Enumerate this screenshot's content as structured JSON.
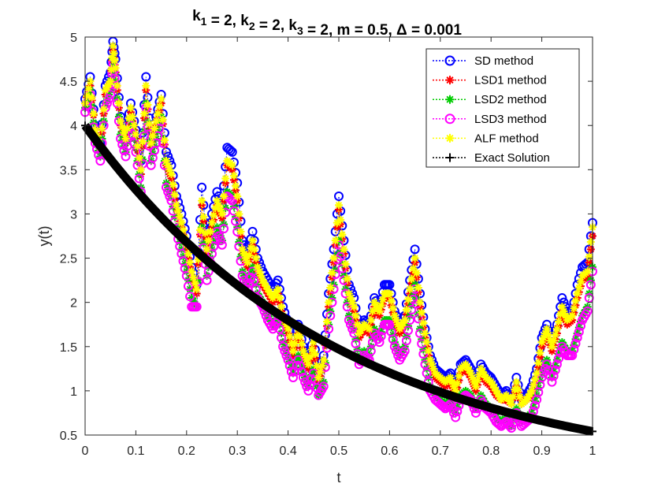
{
  "chart_data": {
    "type": "line",
    "title": {
      "parts": [
        {
          "text": "k",
          "sub": "1"
        },
        {
          "text": " = 2, k",
          "sub": "2"
        },
        {
          "text": " = 2, k",
          "sub": "3"
        },
        {
          "text": " = 2, m = 0.5, Δ = 0.001",
          "sub": ""
        }
      ]
    },
    "xlabel": "t",
    "ylabel": "y(t)",
    "xlim": [
      0,
      1
    ],
    "ylim": [
      0.5,
      5
    ],
    "xticks": [
      0,
      0.1,
      0.2,
      0.3,
      0.4,
      0.5,
      0.6,
      0.7,
      0.8,
      0.9,
      1
    ],
    "xtick_labels": [
      "0",
      "0.1",
      "0.2",
      "0.3",
      "0.4",
      "0.5",
      "0.6",
      "0.7",
      "0.8",
      "0.9",
      "1"
    ],
    "yticks": [
      0.5,
      1,
      1.5,
      2,
      2.5,
      3,
      3.5,
      4,
      4.5,
      5
    ],
    "ytick_labels": [
      "0.5",
      "1",
      "1.5",
      "2",
      "2.5",
      "3",
      "3.5",
      "4",
      "4.5",
      "5"
    ],
    "grid": false,
    "legend_position": "top-right",
    "path_x": [
      0,
      0.01,
      0.02,
      0.03,
      0.04,
      0.05,
      0.055,
      0.06,
      0.07,
      0.08,
      0.09,
      0.1,
      0.11,
      0.12,
      0.13,
      0.14,
      0.15,
      0.16,
      0.17,
      0.18,
      0.19,
      0.2,
      0.21,
      0.22,
      0.23,
      0.24,
      0.25,
      0.26,
      0.27,
      0.28,
      0.29,
      0.3,
      0.31,
      0.32,
      0.33,
      0.34,
      0.35,
      0.36,
      0.37,
      0.38,
      0.39,
      0.4,
      0.41,
      0.42,
      0.43,
      0.44,
      0.45,
      0.46,
      0.47,
      0.48,
      0.49,
      0.5,
      0.51,
      0.52,
      0.53,
      0.54,
      0.55,
      0.56,
      0.57,
      0.58,
      0.59,
      0.6,
      0.61,
      0.62,
      0.63,
      0.64,
      0.65,
      0.66,
      0.67,
      0.68,
      0.69,
      0.7,
      0.71,
      0.72,
      0.73,
      0.74,
      0.75,
      0.76,
      0.77,
      0.78,
      0.79,
      0.8,
      0.81,
      0.82,
      0.83,
      0.84,
      0.85,
      0.86,
      0.87,
      0.88,
      0.89,
      0.9,
      0.91,
      0.92,
      0.93,
      0.94,
      0.95,
      0.96,
      0.97,
      0.98,
      0.99,
      1.0
    ],
    "series": [
      {
        "name": "SD method",
        "color": "#0000ff",
        "marker": "circle",
        "values": [
          4.3,
          4.55,
          4.0,
          3.8,
          4.45,
          4.6,
          4.95,
          4.75,
          4.1,
          3.9,
          4.25,
          3.95,
          3.6,
          4.55,
          3.85,
          4.1,
          4.35,
          3.7,
          3.55,
          3.2,
          3.0,
          2.75,
          2.4,
          2.2,
          3.3,
          2.7,
          3.0,
          3.25,
          3.1,
          3.75,
          3.7,
          3.35,
          2.7,
          2.55,
          2.8,
          2.5,
          2.35,
          2.25,
          2.15,
          2.25,
          1.95,
          1.75,
          1.5,
          1.75,
          1.5,
          1.35,
          1.6,
          1.2,
          1.4,
          2.1,
          2.6,
          3.2,
          2.7,
          2.2,
          2.05,
          1.7,
          1.8,
          1.75,
          2.05,
          1.95,
          2.2,
          2.2,
          1.9,
          1.75,
          1.85,
          2.25,
          2.6,
          2.1,
          1.7,
          1.4,
          1.25,
          1.2,
          1.15,
          1.2,
          1.05,
          1.3,
          1.35,
          1.25,
          1.1,
          1.3,
          1.2,
          1.15,
          1.05,
          0.95,
          1.0,
          0.9,
          1.15,
          0.9,
          0.95,
          1.05,
          1.25,
          1.6,
          1.75,
          1.55,
          1.75,
          2.05,
          1.9,
          1.9,
          2.2,
          2.4,
          2.45,
          2.9
        ]
      },
      {
        "name": "LSD1 method",
        "color": "#ff0000",
        "marker": "star",
        "values": [
          4.25,
          4.45,
          3.95,
          3.7,
          4.35,
          4.5,
          4.85,
          4.6,
          4.0,
          3.8,
          4.15,
          3.85,
          3.45,
          4.4,
          3.75,
          4.0,
          4.25,
          3.55,
          3.4,
          3.05,
          2.85,
          2.6,
          2.3,
          2.1,
          3.1,
          2.55,
          2.85,
          3.1,
          2.95,
          3.55,
          3.5,
          3.15,
          2.55,
          2.4,
          2.65,
          2.35,
          2.2,
          2.1,
          2.0,
          2.1,
          1.8,
          1.65,
          1.4,
          1.65,
          1.4,
          1.25,
          1.5,
          1.1,
          1.3,
          1.95,
          2.45,
          3.05,
          2.55,
          2.05,
          1.9,
          1.6,
          1.7,
          1.65,
          1.95,
          1.85,
          2.05,
          2.05,
          1.8,
          1.65,
          1.75,
          2.1,
          2.45,
          1.95,
          1.6,
          1.3,
          1.15,
          1.1,
          1.05,
          1.1,
          0.95,
          1.2,
          1.25,
          1.15,
          1.0,
          1.2,
          1.1,
          1.05,
          0.95,
          0.9,
          0.9,
          0.85,
          1.05,
          0.85,
          0.9,
          0.95,
          1.15,
          1.5,
          1.65,
          1.45,
          1.65,
          1.9,
          1.75,
          1.8,
          2.05,
          2.25,
          2.3,
          2.75
        ]
      },
      {
        "name": "LSD2 method",
        "color": "#00cc00",
        "marker": "star",
        "values": [
          4.2,
          4.4,
          3.85,
          3.65,
          4.25,
          4.4,
          4.75,
          4.5,
          3.9,
          3.7,
          4.05,
          3.75,
          3.3,
          4.25,
          3.6,
          3.85,
          4.1,
          3.35,
          3.2,
          2.85,
          2.6,
          2.35,
          2.05,
          1.95,
          2.85,
          2.3,
          2.6,
          2.85,
          2.7,
          3.25,
          3.2,
          2.85,
          2.35,
          2.2,
          2.4,
          2.1,
          2.0,
          1.85,
          1.75,
          1.85,
          1.55,
          1.4,
          1.2,
          1.4,
          1.2,
          1.05,
          1.25,
          0.95,
          1.1,
          1.75,
          2.2,
          2.7,
          2.3,
          1.85,
          1.7,
          1.35,
          1.45,
          1.4,
          1.7,
          1.6,
          1.8,
          1.8,
          1.55,
          1.4,
          1.5,
          1.85,
          2.2,
          1.7,
          1.35,
          1.05,
          0.95,
          0.9,
          0.85,
          0.9,
          0.75,
          0.95,
          1.0,
          0.95,
          0.8,
          0.95,
          0.85,
          0.8,
          0.7,
          0.65,
          0.7,
          0.6,
          0.8,
          0.65,
          0.7,
          0.75,
          0.95,
          1.2,
          1.35,
          1.15,
          1.35,
          1.55,
          1.45,
          1.45,
          1.65,
          1.85,
          1.95,
          2.4
        ]
      },
      {
        "name": "LSD3 method",
        "color": "#ff00ff",
        "marker": "circle",
        "values": [
          4.15,
          4.35,
          3.8,
          3.6,
          4.2,
          4.35,
          4.7,
          4.45,
          3.85,
          3.65,
          4.0,
          3.7,
          3.25,
          4.2,
          3.55,
          3.8,
          4.05,
          3.3,
          3.15,
          2.8,
          2.55,
          2.3,
          1.95,
          1.95,
          2.8,
          2.25,
          2.55,
          2.8,
          2.65,
          3.2,
          3.15,
          2.8,
          2.3,
          2.15,
          2.35,
          2.05,
          1.95,
          1.8,
          1.7,
          1.8,
          1.5,
          1.35,
          1.15,
          1.35,
          1.15,
          1.0,
          1.2,
          0.95,
          1.05,
          1.7,
          2.15,
          2.65,
          2.25,
          1.8,
          1.65,
          1.3,
          1.4,
          1.35,
          1.65,
          1.55,
          1.75,
          1.75,
          1.5,
          1.35,
          1.45,
          1.8,
          2.15,
          1.65,
          1.3,
          1.0,
          0.9,
          0.85,
          0.8,
          0.85,
          0.7,
          0.9,
          0.95,
          0.9,
          0.75,
          0.9,
          0.8,
          0.75,
          0.65,
          0.6,
          0.65,
          0.58,
          0.75,
          0.6,
          0.65,
          0.7,
          0.9,
          1.15,
          1.3,
          1.1,
          1.3,
          1.5,
          1.4,
          1.4,
          1.6,
          1.8,
          1.9,
          2.35
        ]
      },
      {
        "name": "ALF method",
        "color": "#ffff00",
        "marker": "star",
        "values": [
          4.25,
          4.5,
          3.95,
          3.75,
          4.4,
          4.5,
          4.9,
          4.65,
          4.05,
          3.85,
          4.2,
          3.9,
          3.5,
          4.45,
          3.8,
          4.05,
          4.3,
          3.6,
          3.45,
          3.1,
          2.9,
          2.65,
          2.35,
          2.15,
          3.15,
          2.6,
          2.9,
          3.15,
          3.0,
          3.6,
          3.55,
          3.2,
          2.6,
          2.45,
          2.7,
          2.4,
          2.25,
          2.15,
          2.05,
          2.15,
          1.85,
          1.7,
          1.45,
          1.7,
          1.45,
          1.3,
          1.55,
          1.15,
          1.35,
          2.0,
          2.5,
          3.1,
          2.6,
          2.1,
          1.95,
          1.65,
          1.75,
          1.7,
          2.0,
          1.9,
          2.1,
          2.1,
          1.85,
          1.7,
          1.8,
          2.15,
          2.5,
          2.0,
          1.65,
          1.35,
          1.2,
          1.15,
          1.1,
          1.15,
          1.0,
          1.25,
          1.3,
          1.2,
          1.05,
          1.25,
          1.15,
          1.1,
          1.0,
          0.9,
          0.95,
          0.85,
          1.1,
          0.85,
          0.9,
          1.0,
          1.2,
          1.55,
          1.7,
          1.5,
          1.7,
          1.95,
          1.8,
          1.85,
          2.1,
          2.3,
          2.35,
          2.85
        ]
      },
      {
        "name": "Exact Solution",
        "color": "#000000",
        "marker": "plus",
        "formula": "4*exp(-2*t)",
        "values": [
          4.0,
          0.541
        ]
      }
    ]
  }
}
